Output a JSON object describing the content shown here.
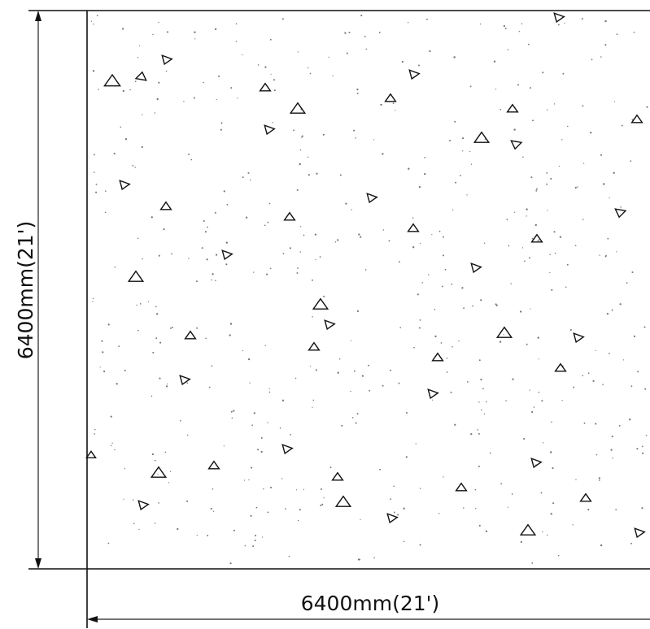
{
  "drawing": {
    "type": "concrete slab plan (terrazzo / aggregate hatch)",
    "width_dimension_label": "6400mm(21')",
    "height_dimension_label": "6400mm(21')",
    "line_color": "#111111",
    "hatch_color": "#777777",
    "background": "#ffffff"
  }
}
